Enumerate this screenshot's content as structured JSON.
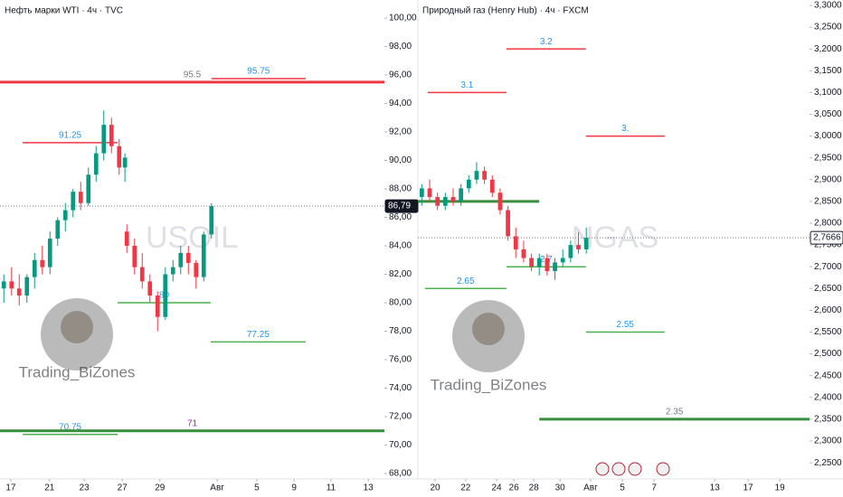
{
  "chart_data": [
    {
      "type": "candlestick",
      "title": "Нефть марки WTI · 4ч · TVC",
      "watermark": "USOIL",
      "author": "Trading_BiZones",
      "up_color": "#089981",
      "down_color": "#f23645",
      "ylim": [
        67.62,
        101.27
      ],
      "yticks": [
        {
          "value": 68,
          "label": "68,00"
        },
        {
          "value": 70,
          "label": "70,00"
        },
        {
          "value": 72,
          "label": "72,00"
        },
        {
          "value": 74,
          "label": "74,00"
        },
        {
          "value": 76,
          "label": "76,00"
        },
        {
          "value": 78,
          "label": "78,00"
        },
        {
          "value": 80,
          "label": "80,00"
        },
        {
          "value": 82,
          "label": "82,00"
        },
        {
          "value": 84,
          "label": "84,00"
        },
        {
          "value": 86,
          "label": "86,00"
        },
        {
          "value": 88,
          "label": "88,00"
        },
        {
          "value": 90,
          "label": "90,00"
        },
        {
          "value": 92,
          "label": "92,00"
        },
        {
          "value": 94,
          "label": "94,00"
        },
        {
          "value": 96,
          "label": "96,00"
        },
        {
          "value": 98,
          "label": "98,00"
        },
        {
          "value": 100,
          "label": "100,00"
        }
      ],
      "xlim": [
        0,
        100
      ],
      "xticks": [
        {
          "value": 2.8,
          "label": "17"
        },
        {
          "value": 12.9,
          "label": "21"
        },
        {
          "value": 21.9,
          "label": "23"
        },
        {
          "value": 31.8,
          "label": "27"
        },
        {
          "value": 41.6,
          "label": "29"
        },
        {
          "value": 56.5,
          "label": "Авг"
        },
        {
          "value": 66.8,
          "label": "5"
        },
        {
          "value": 76.5,
          "label": "9"
        },
        {
          "value": 86.1,
          "label": "11"
        },
        {
          "value": 95.8,
          "label": "13"
        }
      ],
      "last_price": {
        "value": 86.79,
        "label": "86,79"
      },
      "candles": {
        "x": [
          1,
          3,
          5,
          7,
          9,
          11,
          13,
          15,
          17,
          19,
          21,
          23,
          25,
          27,
          29,
          31,
          32.5,
          33,
          35,
          37,
          39,
          41,
          43,
          45,
          47,
          49,
          51,
          53,
          55
        ],
        "open": [
          81,
          81.5,
          81,
          80.5,
          81.8,
          83,
          82.5,
          84.5,
          85.8,
          86.5,
          87.8,
          87,
          89,
          90.5,
          92.5,
          91,
          89.5,
          85,
          84,
          82.5,
          81.5,
          80.5,
          79,
          82,
          82.5,
          83.5,
          82.8,
          81.8,
          84.8
        ],
        "high": [
          82,
          82.5,
          82,
          82,
          83.5,
          84,
          85,
          86,
          87,
          88,
          88.5,
          89.5,
          91,
          93.5,
          93,
          91.5,
          90.5,
          85.5,
          84.5,
          83.5,
          82,
          80.8,
          82.5,
          83,
          84,
          84,
          83,
          85,
          87
        ],
        "low": [
          80,
          80.5,
          79.8,
          80,
          81,
          82,
          82,
          84,
          85,
          86,
          86.5,
          86.8,
          88.5,
          90,
          90.5,
          89,
          88.5,
          83.5,
          82,
          81,
          80,
          78,
          78.8,
          81.5,
          82,
          82,
          81,
          81.5,
          84.5
        ],
        "close": [
          81.5,
          81,
          80.5,
          81.8,
          83,
          82.5,
          84.5,
          85.8,
          86.5,
          87.8,
          87,
          89,
          90.5,
          92.5,
          91,
          89.5,
          90.2,
          84,
          82.5,
          81.5,
          80.5,
          79,
          82,
          82.5,
          83.5,
          82.8,
          81.8,
          84.8,
          86.79
        ]
      },
      "levels": [
        {
          "value": 95.5,
          "x": [
            0,
            100
          ],
          "color": "#f23645",
          "width": 3,
          "label": "95.5",
          "label_color": "#787b86"
        },
        {
          "value": 95.75,
          "x": [
            55,
            79.5
          ],
          "color": "#f23645",
          "width": 1.5,
          "label": "95.75",
          "label_color": "#2196f3"
        },
        {
          "value": 91.25,
          "x": [
            5.9,
            30.6
          ],
          "color": "#f23645",
          "width": 1.5,
          "label": "91.25",
          "label_color": "#2196f3"
        },
        {
          "value": 80,
          "x": [
            30.6,
            54.8
          ],
          "color": "#4caf50",
          "width": 1.5,
          "label": "80",
          "label_color": "#2196f3"
        },
        {
          "value": 77.25,
          "x": [
            54.8,
            79.5
          ],
          "color": "#4caf50",
          "width": 1.5,
          "label": "77.25",
          "label_color": "#2196f3"
        },
        {
          "value": 70.75,
          "x": [
            5.9,
            30.6
          ],
          "color": "#4caf50",
          "width": 1.5,
          "label": "70.75",
          "label_color": "#2196f3"
        },
        {
          "value": 71,
          "x": [
            0,
            100
          ],
          "color": "#388e3c",
          "width": 3,
          "label": "71",
          "label_color": "#9c27b0"
        }
      ]
    },
    {
      "type": "candlestick",
      "title": "Природный газ (Henry Hub) · 4ч · FXCM",
      "watermark": "NGAS",
      "author": "Trading_BiZones",
      "up_color": "#089981",
      "down_color": "#f23645",
      "ylim": [
        2.2129,
        3.3124
      ],
      "yticks": [
        {
          "value": 2.25,
          "label": "2,2500"
        },
        {
          "value": 2.3,
          "label": "2,3000"
        },
        {
          "value": 2.35,
          "label": "2,3500"
        },
        {
          "value": 2.4,
          "label": "2,4000"
        },
        {
          "value": 2.45,
          "label": "2,4500"
        },
        {
          "value": 2.5,
          "label": "2,5000"
        },
        {
          "value": 2.55,
          "label": "2,5500"
        },
        {
          "value": 2.6,
          "label": "2,6000"
        },
        {
          "value": 2.65,
          "label": "2,6500"
        },
        {
          "value": 2.7,
          "label": "2,7000"
        },
        {
          "value": 2.75,
          "label": "2,7500"
        },
        {
          "value": 2.8,
          "label": "2,8000"
        },
        {
          "value": 2.85,
          "label": "2,8500"
        },
        {
          "value": 2.9,
          "label": "2,9000"
        },
        {
          "value": 2.95,
          "label": "2,9500"
        },
        {
          "value": 3.0,
          "label": "3,0000"
        },
        {
          "value": 3.05,
          "label": "3,0500"
        },
        {
          "value": 3.1,
          "label": "3,1000"
        },
        {
          "value": 3.15,
          "label": "3,1500"
        },
        {
          "value": 3.2,
          "label": "3,2000"
        },
        {
          "value": 3.25,
          "label": "3,2500"
        },
        {
          "value": 3.3,
          "label": "3,3000"
        }
      ],
      "xlim": [
        0,
        100
      ],
      "xticks": [
        {
          "value": 4.4,
          "label": "20"
        },
        {
          "value": 12.2,
          "label": "22"
        },
        {
          "value": 20.1,
          "label": "24"
        },
        {
          "value": 24.5,
          "label": "26"
        },
        {
          "value": 29.6,
          "label": "28"
        },
        {
          "value": 36.3,
          "label": "30"
        },
        {
          "value": 44.1,
          "label": "Авг"
        },
        {
          "value": 52.2,
          "label": "5"
        },
        {
          "value": 60.3,
          "label": "7"
        },
        {
          "value": 75.8,
          "label": "13"
        },
        {
          "value": 84.3,
          "label": "17"
        },
        {
          "value": 92.4,
          "label": "19"
        }
      ],
      "last_price": {
        "value": 2.7666,
        "label": "2,7666"
      },
      "candles": {
        "x": [
          1,
          3,
          5,
          7,
          9,
          11,
          13,
          15,
          17,
          19,
          21,
          23,
          25,
          27,
          29,
          31,
          33,
          35,
          37,
          39,
          41,
          43
        ],
        "open": [
          2.86,
          2.88,
          2.86,
          2.84,
          2.86,
          2.85,
          2.88,
          2.9,
          2.92,
          2.9,
          2.87,
          2.83,
          2.77,
          2.74,
          2.72,
          2.7,
          2.72,
          2.69,
          2.71,
          2.72,
          2.75,
          2.74
        ],
        "high": [
          2.89,
          2.9,
          2.87,
          2.87,
          2.88,
          2.89,
          2.91,
          2.94,
          2.93,
          2.91,
          2.88,
          2.84,
          2.79,
          2.76,
          2.73,
          2.73,
          2.73,
          2.72,
          2.74,
          2.76,
          2.78,
          2.79
        ],
        "low": [
          2.84,
          2.85,
          2.83,
          2.83,
          2.84,
          2.84,
          2.87,
          2.89,
          2.89,
          2.86,
          2.82,
          2.76,
          2.72,
          2.71,
          2.69,
          2.68,
          2.68,
          2.67,
          2.7,
          2.71,
          2.73,
          2.73
        ],
        "close": [
          2.88,
          2.86,
          2.84,
          2.86,
          2.85,
          2.88,
          2.9,
          2.92,
          2.9,
          2.87,
          2.83,
          2.77,
          2.74,
          2.72,
          2.7,
          2.72,
          2.69,
          2.71,
          2.72,
          2.75,
          2.74,
          2.7666
        ]
      },
      "levels": [
        {
          "value": 3.2,
          "x": [
            22.6,
            42.9
          ],
          "color": "#f23645",
          "width": 1.5,
          "label": "3.2",
          "label_color": "#2196f3"
        },
        {
          "value": 3.1,
          "x": [
            2.5,
            22.6
          ],
          "color": "#f23645",
          "width": 1.5,
          "label": "3.1",
          "label_color": "#2196f3"
        },
        {
          "value": 3,
          "x": [
            42.9,
            63
          ],
          "color": "#f23645",
          "width": 1.5,
          "label": "3.",
          "label_color": "#2196f3"
        },
        {
          "value": 2.85,
          "x": [
            0,
            31
          ],
          "color": "#388e3c",
          "width": 3
        },
        {
          "value": 2.7,
          "x": [
            22.6,
            42.9
          ],
          "color": "#4caf50",
          "width": 1.5,
          "label": "2.7",
          "label_color": "#2196f3"
        },
        {
          "value": 2.65,
          "x": [
            1.8,
            22.6
          ],
          "color": "#4caf50",
          "width": 1.5,
          "label": "2.65",
          "label_color": "#2196f3"
        },
        {
          "value": 2.55,
          "x": [
            42.9,
            63
          ],
          "color": "#4caf50",
          "width": 1.5,
          "label": "2.55",
          "label_color": "#2196f3"
        },
        {
          "value": 2.35,
          "x": [
            31,
            100
          ],
          "color": "#388e3c",
          "width": 3,
          "label": "2.35",
          "label_color": "#787b86"
        }
      ]
    }
  ]
}
